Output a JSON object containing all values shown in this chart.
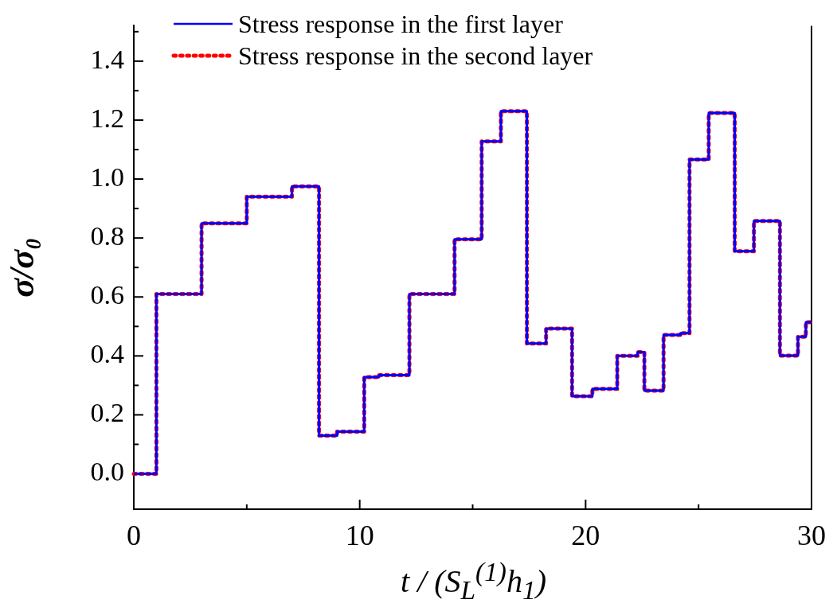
{
  "chart_data": {
    "type": "step",
    "xlabel": "t / (S$_{L}$$^{(1)}$h$_{1}$)",
    "ylabel": "σ/σ₀",
    "x": [
      0,
      1,
      3,
      5,
      7,
      8.2,
      9,
      10.2,
      10.86,
      12.2,
      14.2,
      15.4,
      16.25,
      17.4,
      18.25,
      19.4,
      20.3,
      21.4,
      22.3,
      22.6,
      23.45,
      24.2,
      24.6,
      25.45,
      26.6,
      27.45,
      28.6,
      29.4,
      29.75,
      30
    ],
    "series": [
      {
        "name": "Stress response in the first layer",
        "color": "#0000ff",
        "line_style": "solid",
        "values": [
          0,
          0.61,
          0.85,
          0.94,
          0.975,
          0.13,
          0.143,
          0.328,
          0.335,
          0.61,
          0.796,
          1.128,
          1.23,
          0.442,
          0.493,
          0.263,
          0.288,
          0.4,
          0.413,
          0.282,
          0.471,
          0.477,
          1.066,
          1.224,
          0.755,
          0.858,
          0.401,
          0.465,
          0.514,
          0.514
        ]
      },
      {
        "name": "Stress response in the second layer",
        "color": "#ff0000",
        "line_style": "dotted",
        "values": [
          0,
          0.61,
          0.85,
          0.94,
          0.975,
          0.13,
          0.143,
          0.328,
          0.335,
          0.61,
          0.796,
          1.128,
          1.23,
          0.442,
          0.493,
          0.263,
          0.288,
          0.4,
          0.413,
          0.282,
          0.471,
          0.477,
          1.066,
          1.224,
          0.755,
          0.858,
          0.401,
          0.465,
          0.514,
          0.514
        ]
      }
    ],
    "xlim": [
      0,
      30
    ],
    "xticks": [
      0,
      {
        "value": 5,
        "label": null
      },
      10,
      {
        "value": 15,
        "label": null
      },
      20,
      {
        "value": 25,
        "label": null
      },
      30
    ],
    "ylim": [
      -0.12,
      1.52
    ],
    "yticks": [
      {
        "value": 0,
        "label": "0.0"
      },
      {
        "value": 0.1,
        "label": null
      },
      {
        "value": 0.2,
        "label": "0.2"
      },
      {
        "value": 0.3,
        "label": null
      },
      {
        "value": 0.4,
        "label": "0.4"
      },
      {
        "value": 0.5,
        "label": null
      },
      {
        "value": 0.6,
        "label": "0.6"
      },
      {
        "value": 0.7,
        "label": null
      },
      {
        "value": 0.8,
        "label": "0.8"
      },
      {
        "value": 0.9,
        "label": null
      },
      {
        "value": 1.0,
        "label": "1.0"
      },
      {
        "value": 1.1,
        "label": null
      },
      {
        "value": 1.2,
        "label": "1.2"
      },
      {
        "value": 1.3,
        "label": null
      },
      {
        "value": 1.4,
        "label": "1.4"
      },
      {
        "value": 1.5,
        "label": null
      }
    ],
    "legend": "top",
    "marker": "none"
  }
}
